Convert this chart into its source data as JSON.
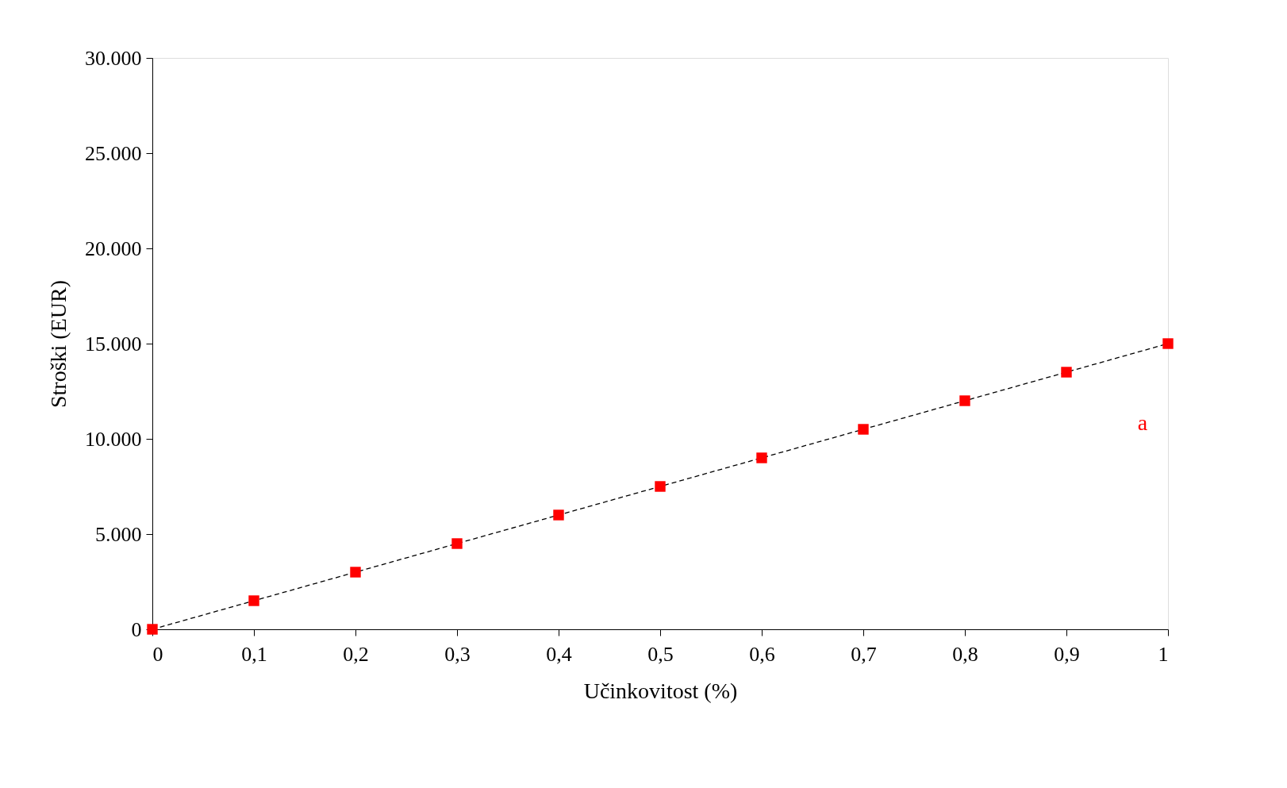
{
  "chart_data": {
    "type": "scatter",
    "xlabel": "Učinkovitost (%)",
    "ylabel": "Stroški (EUR)",
    "x": [
      0,
      0.1,
      0.2,
      0.3,
      0.4,
      0.5,
      0.6,
      0.7,
      0.8,
      0.9,
      1
    ],
    "series": [
      {
        "color": "#ff0000",
        "marker": "square",
        "values": [
          0,
          1500,
          3000,
          4500,
          6000,
          7500,
          9000,
          10500,
          12000,
          13500,
          15000
        ]
      },
      {
        "type": "line",
        "color": "#000000",
        "line_style": "dashed",
        "marker": "none",
        "x": [
          0,
          1
        ],
        "values": [
          0,
          15000
        ]
      }
    ],
    "xlim": [
      0,
      1
    ],
    "ylim": [
      0,
      30000
    ],
    "xticks": [
      0,
      {
        "value": 0.1,
        "label": "0,1"
      },
      {
        "value": 0.2,
        "label": "0,2"
      },
      {
        "value": 0.3,
        "label": "0,3"
      },
      {
        "value": 0.4,
        "label": "0,4"
      },
      {
        "value": 0.5,
        "label": "0,5"
      },
      {
        "value": 0.6,
        "label": "0,6"
      },
      {
        "value": 0.7,
        "label": "0,7"
      },
      {
        "value": 0.8,
        "label": "0,8"
      },
      {
        "value": 0.9,
        "label": "0,9"
      },
      1
    ],
    "yticks": [
      0,
      {
        "value": 5000,
        "label": "5.000"
      },
      {
        "value": 10000,
        "label": "10.000"
      },
      {
        "value": 15000,
        "label": "15.000"
      },
      {
        "value": 20000,
        "label": "20.000"
      },
      {
        "value": 25000,
        "label": "25.000"
      },
      {
        "value": 30000,
        "label": "30.000"
      }
    ],
    "annotations": [
      "a"
    ],
    "grid": false
  }
}
